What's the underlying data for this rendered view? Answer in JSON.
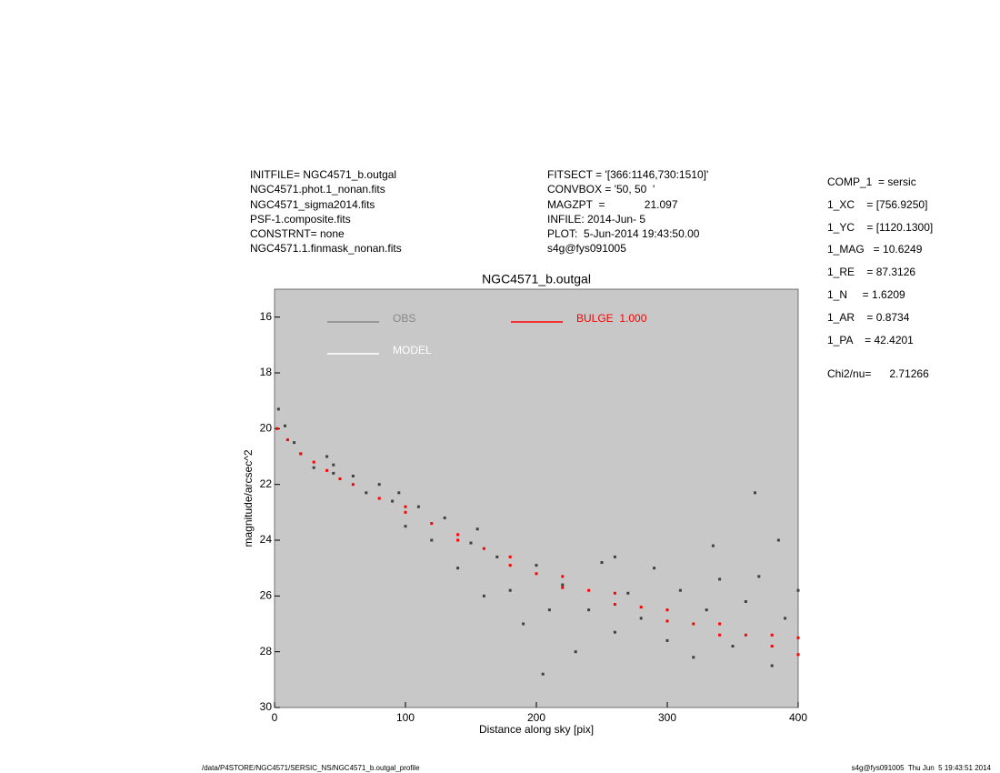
{
  "header": {
    "left": [
      "INITFILE= NGC4571_b.outgal",
      "NGC4571.phot.1_nonan.fits",
      "NGC4571_sigma2014.fits",
      "PSF-1.composite.fits",
      "CONSTRNT= none",
      "NGC4571.1.finmask_nonan.fits"
    ],
    "middle": [
      "FITSECT = '[366:1146,730:1510]'",
      "CONVBOX = '50, 50  '",
      "MAGZPT  =             21.097",
      "INFILE: 2014-Jun- 5",
      "PLOT:  5-Jun-2014 19:43:50.00",
      "s4g@fys091005"
    ],
    "params": [
      "COMP_1  = sersic",
      "1_XC    = [756.9250]",
      "1_YC    = [1120.1300]",
      "1_MAG   = 10.6249",
      "1_RE    = 87.3126",
      "1_N     = 1.6209",
      "1_AR    = 0.8734",
      "1_PA    = 42.4201"
    ],
    "chi2": "Chi2/nu=      2.71266"
  },
  "footer": {
    "left": "/data/P4STORE/NGC4571/SERSIC_NS/NGC4571_b.outgal_profile",
    "right": "s4g@fys091005  Thu Jun  5 19:43:51 2014"
  },
  "chart_data": {
    "type": "scatter",
    "title": "NGC4571_b.outgal",
    "x_label": "Distance along sky [pix]",
    "y_label": "magnitude/arcsec^2",
    "xlim": [
      0,
      400
    ],
    "xticks": [
      0,
      100,
      200,
      300,
      400
    ],
    "ylim": [
      30,
      15
    ],
    "yticks": [
      16,
      18,
      20,
      22,
      24,
      26,
      28,
      30
    ],
    "background": "#c8c8c8",
    "series": [
      {
        "name": "OBS",
        "color": "#404040",
        "x": [
          3,
          8,
          15,
          20,
          30,
          40,
          45,
          45,
          60,
          70,
          80,
          90,
          95,
          100,
          110,
          120,
          130,
          140,
          150,
          155,
          160,
          170,
          180,
          190,
          200,
          205,
          210,
          220,
          230,
          240,
          250,
          260,
          260,
          270,
          280,
          290,
          300,
          310,
          320,
          330,
          335,
          340,
          350,
          360,
          367,
          370,
          380,
          385,
          390,
          400
        ],
        "values": [
          19.3,
          19.9,
          20.5,
          20.9,
          21.4,
          21.0,
          21.6,
          21.3,
          21.7,
          22.3,
          22.0,
          22.6,
          22.3,
          23.5,
          22.8,
          24.0,
          23.2,
          25.0,
          24.1,
          23.6,
          26.0,
          24.6,
          25.8,
          27.0,
          24.9,
          28.8,
          26.5,
          25.6,
          28.0,
          26.5,
          24.8,
          27.3,
          24.6,
          25.9,
          26.8,
          25.0,
          27.6,
          25.8,
          28.2,
          26.5,
          24.2,
          25.4,
          27.8,
          26.2,
          22.3,
          25.3,
          28.5,
          24.0,
          26.8,
          25.8
        ]
      },
      {
        "name": "MODEL",
        "color": "#ffffff",
        "x": [],
        "values": []
      },
      {
        "name": "BULGE  1.000",
        "color": "#ff0000",
        "x": [
          2,
          10,
          20,
          30,
          40,
          50,
          60,
          80,
          100,
          100,
          120,
          140,
          140,
          160,
          180,
          180,
          200,
          220,
          220,
          240,
          260,
          260,
          280,
          300,
          300,
          320,
          340,
          340,
          360,
          380,
          380,
          400,
          400
        ],
        "values": [
          20.0,
          20.4,
          20.9,
          21.2,
          21.5,
          21.8,
          22.0,
          22.5,
          22.8,
          23.0,
          23.4,
          23.8,
          24.0,
          24.3,
          24.6,
          24.9,
          25.2,
          25.3,
          25.7,
          25.8,
          25.9,
          26.3,
          26.4,
          26.5,
          26.9,
          27.0,
          27.0,
          27.4,
          27.4,
          27.4,
          27.8,
          27.5,
          28.1
        ]
      }
    ]
  }
}
